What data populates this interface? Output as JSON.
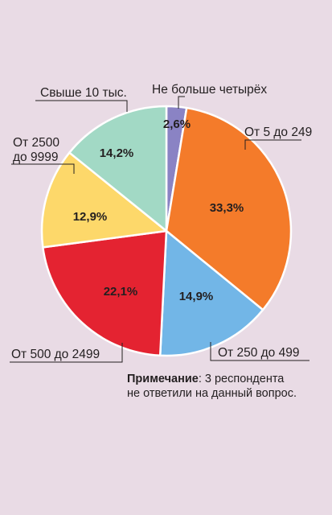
{
  "chart_data": {
    "type": "pie",
    "slices": [
      {
        "label": "Не больше четырёх",
        "value": 2.6,
        "display": "2,6%",
        "color": "#8a83c4"
      },
      {
        "label": "От 5 до 249",
        "value": 33.3,
        "display": "33,3%",
        "color": "#f47b2a"
      },
      {
        "label": "От 250 до 499",
        "value": 14.9,
        "display": "14,9%",
        "color": "#72b6e7"
      },
      {
        "label": "От 500 до 2499",
        "value": 22.1,
        "display": "22,1%",
        "color": "#e42331"
      },
      {
        "label": "От 2500 до 9999",
        "value": 12.9,
        "display": "12,9%",
        "color": "#fdd86a"
      },
      {
        "label": "Свыше 10 тыс.",
        "value": 14.2,
        "display": "14,2%",
        "color": "#a2d9c5"
      }
    ],
    "callouts": {
      "s0": "Не больше четырёх",
      "s1": "От 5 до 249",
      "s2": "От 250 до 499",
      "s3": "От 500 до 2499",
      "s4_line1": "От 2500",
      "s4_line2": "до 9999",
      "s5": "Свыше 10 тыс."
    }
  },
  "note": {
    "bold": "Примечание",
    "line1": ": 3 респондента",
    "line2": "не ответили на данный вопрос."
  }
}
